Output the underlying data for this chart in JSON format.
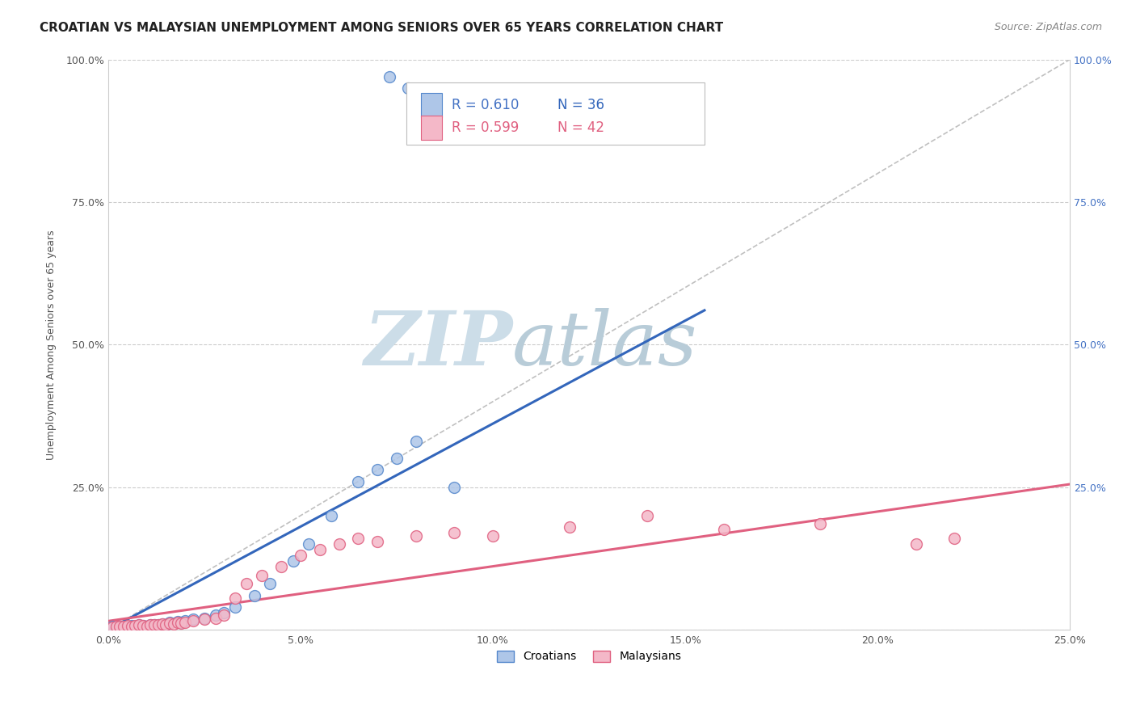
{
  "title": "CROATIAN VS MALAYSIAN UNEMPLOYMENT AMONG SENIORS OVER 65 YEARS CORRELATION CHART",
  "source": "Source: ZipAtlas.com",
  "ylabel": "Unemployment Among Seniors over 65 years",
  "xlim": [
    0.0,
    0.25
  ],
  "ylim": [
    0.0,
    1.0
  ],
  "xticks": [
    0.0,
    0.05,
    0.1,
    0.15,
    0.2,
    0.25
  ],
  "yticks": [
    0.0,
    0.25,
    0.5,
    0.75,
    1.0
  ],
  "xtick_labels": [
    "0.0%",
    "5.0%",
    "10.0%",
    "15.0%",
    "20.0%",
    "25.0%"
  ],
  "ytick_labels_left": [
    "",
    "25.0%",
    "50.0%",
    "75.0%",
    "100.0%"
  ],
  "ytick_labels_right": [
    "",
    "25.0%",
    "50.0%",
    "75.0%",
    "100.0%"
  ],
  "croatian_scatter_x": [
    0.001,
    0.002,
    0.003,
    0.004,
    0.005,
    0.006,
    0.007,
    0.008,
    0.009,
    0.01,
    0.011,
    0.012,
    0.013,
    0.014,
    0.015,
    0.016,
    0.018,
    0.019,
    0.02,
    0.022,
    0.025,
    0.028,
    0.03,
    0.033,
    0.038,
    0.042,
    0.048,
    0.052,
    0.058,
    0.065,
    0.07,
    0.075,
    0.08,
    0.09,
    0.073,
    0.078
  ],
  "croatian_scatter_y": [
    0.005,
    0.004,
    0.006,
    0.005,
    0.006,
    0.007,
    0.006,
    0.008,
    0.007,
    0.006,
    0.008,
    0.009,
    0.008,
    0.01,
    0.009,
    0.012,
    0.014,
    0.013,
    0.016,
    0.018,
    0.02,
    0.025,
    0.03,
    0.04,
    0.06,
    0.08,
    0.12,
    0.15,
    0.2,
    0.26,
    0.28,
    0.3,
    0.33,
    0.25,
    0.97,
    0.95
  ],
  "malaysian_scatter_x": [
    0.001,
    0.002,
    0.003,
    0.004,
    0.005,
    0.006,
    0.007,
    0.008,
    0.009,
    0.01,
    0.011,
    0.012,
    0.013,
    0.014,
    0.015,
    0.016,
    0.017,
    0.018,
    0.019,
    0.02,
    0.022,
    0.025,
    0.028,
    0.03,
    0.033,
    0.036,
    0.04,
    0.045,
    0.05,
    0.055,
    0.06,
    0.065,
    0.07,
    0.08,
    0.09,
    0.1,
    0.12,
    0.14,
    0.16,
    0.185,
    0.21,
    0.22
  ],
  "malaysian_scatter_y": [
    0.004,
    0.005,
    0.005,
    0.006,
    0.007,
    0.006,
    0.007,
    0.008,
    0.007,
    0.006,
    0.008,
    0.008,
    0.009,
    0.01,
    0.009,
    0.011,
    0.01,
    0.012,
    0.011,
    0.013,
    0.015,
    0.018,
    0.02,
    0.025,
    0.055,
    0.08,
    0.095,
    0.11,
    0.13,
    0.14,
    0.15,
    0.16,
    0.155,
    0.165,
    0.17,
    0.165,
    0.18,
    0.2,
    0.175,
    0.185,
    0.15,
    0.16
  ],
  "croatian_line_x": [
    0.0,
    0.155
  ],
  "croatian_line_y": [
    0.0,
    0.56
  ],
  "malaysian_line_x": [
    0.0,
    0.25
  ],
  "malaysian_line_y": [
    0.015,
    0.255
  ],
  "diagonal_line_x": [
    0.0,
    0.25
  ],
  "diagonal_line_y": [
    0.0,
    1.0
  ],
  "bg_color": "#ffffff",
  "grid_color": "#cccccc",
  "scatter_size": 100,
  "croatian_scatter_color": "#aec6e8",
  "croatian_scatter_edge": "#5588cc",
  "malaysian_scatter_color": "#f4b8c8",
  "malaysian_scatter_edge": "#e06080",
  "croatian_line_color": "#3366bb",
  "malaysian_line_color": "#e06080",
  "diagonal_color": "#c0c0c0",
  "watermark_zip": "ZIP",
  "watermark_atlas": "atlas",
  "watermark_color_zip": "#ccdde8",
  "watermark_color_atlas": "#b8d0e0",
  "title_fontsize": 11,
  "source_fontsize": 9,
  "axis_label_fontsize": 9,
  "tick_fontsize": 9,
  "legend_r_cro": "R = 0.610",
  "legend_n_cro": "N = 36",
  "legend_r_mal": "R = 0.599",
  "legend_n_mal": "N = 42"
}
